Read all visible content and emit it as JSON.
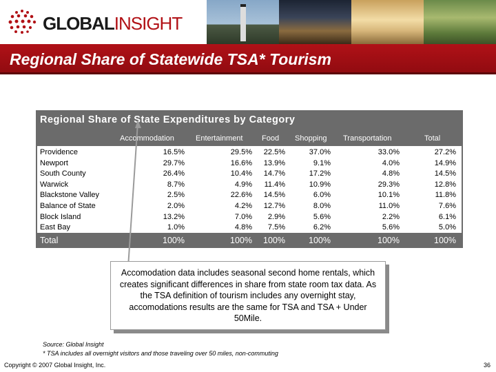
{
  "header": {
    "logo_part1": "GLOBAL",
    "logo_part2": "INSIGHT",
    "title": "Regional Share of Statewide TSA* Tourism"
  },
  "table": {
    "title": "Regional Share of State Expenditures by Category",
    "columns": [
      "Accommodation",
      "Entertainment",
      "Food",
      "Shopping",
      "Transportation",
      "Total"
    ],
    "rows": [
      {
        "region": "Providence",
        "values": [
          "16.5%",
          "29.5%",
          "22.5%",
          "37.0%",
          "33.0%",
          "27.2%"
        ]
      },
      {
        "region": "Newport",
        "values": [
          "29.7%",
          "16.6%",
          "13.9%",
          "9.1%",
          "4.0%",
          "14.9%"
        ]
      },
      {
        "region": "South County",
        "values": [
          "26.4%",
          "10.4%",
          "14.7%",
          "17.2%",
          "4.8%",
          "14.5%"
        ]
      },
      {
        "region": "Warwick",
        "values": [
          "8.7%",
          "4.9%",
          "11.4%",
          "10.9%",
          "29.3%",
          "12.8%"
        ]
      },
      {
        "region": "Blackstone Valley",
        "values": [
          "2.5%",
          "22.6%",
          "14.5%",
          "6.0%",
          "10.1%",
          "11.8%"
        ]
      },
      {
        "region": "Balance of State",
        "values": [
          "2.0%",
          "4.2%",
          "12.7%",
          "8.0%",
          "11.0%",
          "7.6%"
        ]
      },
      {
        "region": "Block Island",
        "values": [
          "13.2%",
          "7.0%",
          "2.9%",
          "5.6%",
          "2.2%",
          "6.1%"
        ]
      },
      {
        "region": "East Bay",
        "values": [
          "1.0%",
          "4.8%",
          "7.5%",
          "6.2%",
          "5.6%",
          "5.0%"
        ]
      }
    ],
    "total": {
      "label": "Total",
      "values": [
        "100%",
        "100%",
        "100%",
        "100%",
        "100%",
        "100%"
      ]
    }
  },
  "callout": {
    "text": "Accomodation data includes seasonal second home rentals, which creates significant differences in share from state room tax data. As the TSA definition of tourism includes any overnight stay, accomodations results are the same for TSA and TSA + Under 50Mile."
  },
  "footer": {
    "source": "Source: Global Insight",
    "note": "* TSA includes all overnight visitors and those traveling over 50 miles, non-commuting",
    "copyright": "Copyright © 2007 Global Insight, Inc.",
    "page_number": "36"
  }
}
